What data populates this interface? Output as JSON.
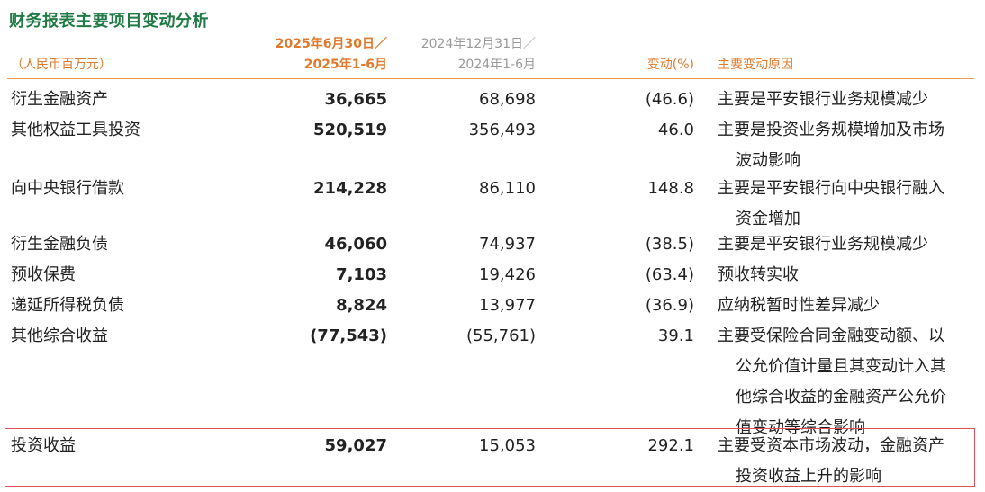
{
  "title": "财务报表主要项目变动分析",
  "header": {
    "unit": "（人民币百万元）",
    "current_line1": "2025年6月30日／",
    "current_line2": "2025年1-6月",
    "previous_line1": "2024年12月31日／",
    "previous_line2": "2024年1-6月",
    "change": "变动(%)",
    "reason": "主要变动原因"
  },
  "rows": [
    {
      "item": "衍生金融资产",
      "current": "36,665",
      "previous": "68,698",
      "change": "(46.6)",
      "reason": [
        "主要是平安银行业务规模减少"
      ]
    },
    {
      "item": "其他权益工具投资",
      "current": "520,519",
      "previous": "356,493",
      "change": "46.0",
      "reason": [
        "主要是投资业务规模增加及市场",
        "波动影响"
      ]
    },
    {
      "item": "向中央银行借款",
      "current": "214,228",
      "previous": "86,110",
      "change": "148.8",
      "reason": [
        "主要是平安银行向中央银行融入",
        "资金增加"
      ]
    },
    {
      "item": "衍生金融负债",
      "current": "46,060",
      "previous": "74,937",
      "change": "(38.5)",
      "reason": [
        "主要是平安银行业务规模减少"
      ]
    },
    {
      "item": "预收保费",
      "current": "7,103",
      "previous": "19,426",
      "change": "(63.4)",
      "reason": [
        "预收转实收"
      ]
    },
    {
      "item": "递延所得税负债",
      "current": "8,824",
      "previous": "13,977",
      "change": "(36.9)",
      "reason": [
        "应纳税暂时性差异减少"
      ]
    },
    {
      "item": "其他综合收益",
      "current": "(77,543)",
      "previous": "(55,761)",
      "change": "39.1",
      "reason": [
        "主要受保险合同金融变动额、以",
        "公允价值计量且其变动计入其",
        "他综合收益的金融资产公允价",
        "值变动等综合影响"
      ]
    },
    {
      "item": "投资收益",
      "current": "59,027",
      "previous": "15,053",
      "change": "292.1",
      "reason": [
        "主要受资本市场波动，金融资产",
        "投资收益上升的影响"
      ]
    }
  ]
}
